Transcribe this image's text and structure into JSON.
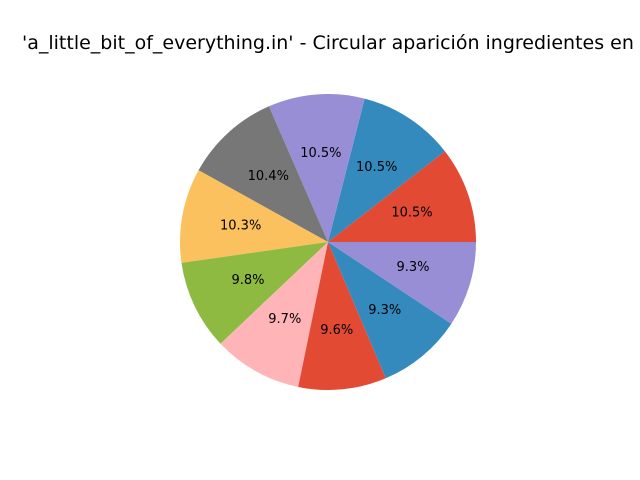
{
  "chart_data": {
    "type": "pie",
    "title": "'a_little_bit_of_everything.in' - Circular aparición ingredientes en pizzas",
    "start_angle_deg": 0,
    "direction": "counterclockwise",
    "values": [
      10.5,
      10.5,
      10.5,
      10.4,
      10.3,
      9.8,
      9.7,
      9.6,
      9.3,
      9.3
    ],
    "labels": [
      "10.5%",
      "10.5%",
      "10.5%",
      "10.4%",
      "10.3%",
      "9.8%",
      "9.7%",
      "9.6%",
      "9.3%",
      "9.3%"
    ],
    "colors": [
      "#E24A33",
      "#348ABD",
      "#988ED5",
      "#777777",
      "#FBC15E",
      "#8EBA42",
      "#FFB5B8",
      "#E24A33",
      "#348ABD",
      "#988ED5"
    ],
    "legend": false
  }
}
